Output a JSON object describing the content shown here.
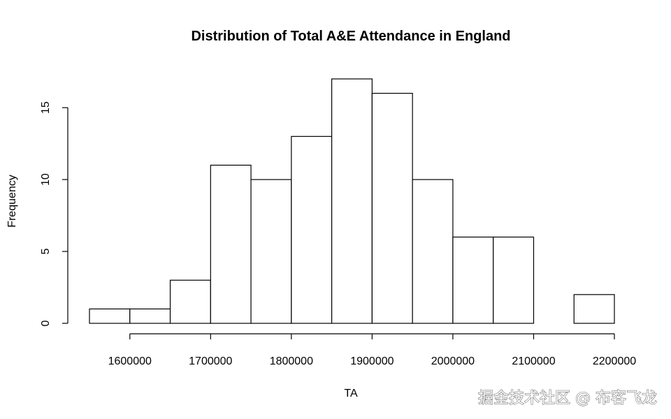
{
  "chart_data": {
    "type": "histogram",
    "title": "Distribution of Total A&E Attendance in England",
    "xlabel": "TA",
    "ylabel": "Frequency",
    "bin_edges": [
      1550000,
      1600000,
      1650000,
      1700000,
      1750000,
      1800000,
      1850000,
      1900000,
      1950000,
      2000000,
      2050000,
      2100000,
      2150000,
      2200000
    ],
    "counts": [
      1,
      1,
      3,
      11,
      10,
      13,
      17,
      16,
      10,
      6,
      6,
      0,
      2
    ],
    "x_ticks": [
      1600000,
      1700000,
      1800000,
      1900000,
      2000000,
      2100000,
      2200000
    ],
    "x_tick_labels": [
      "1600000",
      "1700000",
      "1800000",
      "1900000",
      "2000000",
      "2100000",
      "2200000"
    ],
    "y_ticks": [
      0,
      5,
      10,
      15
    ],
    "y_tick_labels": [
      "0",
      "5",
      "10",
      "15"
    ],
    "xlim": [
      1550000,
      2200000
    ],
    "ylim": [
      0,
      17
    ],
    "grid": false,
    "bar_fill": "#ffffff",
    "bar_stroke": "#000000"
  },
  "watermark": "掘金技术社区 @ 布客飞龙"
}
